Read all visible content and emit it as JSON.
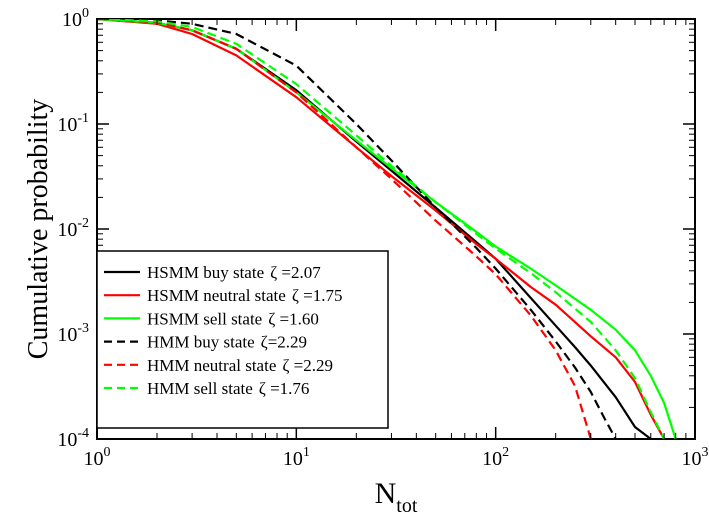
{
  "chart_data": {
    "type": "line",
    "xlabel": "N",
    "xlabel_sub": "tot",
    "ylabel": "Cumulative probability",
    "xscale": "log",
    "yscale": "log",
    "xlim": [
      1,
      1000
    ],
    "ylim": [
      0.0001,
      1
    ],
    "grid": false,
    "legend_position": "bottom-left",
    "x_ticks": [
      {
        "base": "10",
        "exp": "0",
        "value": 1
      },
      {
        "base": "10",
        "exp": "1",
        "value": 10
      },
      {
        "base": "10",
        "exp": "2",
        "value": 100
      },
      {
        "base": "10",
        "exp": "3",
        "value": 1000
      }
    ],
    "y_ticks": [
      {
        "base": "10",
        "exp": "-4",
        "value": 0.0001
      },
      {
        "base": "10",
        "exp": "-3",
        "value": 0.001
      },
      {
        "base": "10",
        "exp": "-2",
        "value": 0.01
      },
      {
        "base": "10",
        "exp": "-1",
        "value": 0.1
      },
      {
        "base": "10",
        "exp": "0",
        "value": 1
      }
    ],
    "series": [
      {
        "name": "HSMM buy state",
        "zeta": "ζ =2.07",
        "color": "#000000",
        "dash": "solid",
        "x": [
          1,
          2,
          3,
          5,
          10,
          20,
          30,
          50,
          80,
          100,
          150,
          200,
          250,
          300,
          400,
          500,
          600
        ],
        "y": [
          1,
          0.92,
          0.78,
          0.52,
          0.21,
          0.068,
          0.036,
          0.016,
          0.0075,
          0.0052,
          0.0022,
          0.0012,
          0.00075,
          0.0005,
          0.00025,
          0.00013,
          0.0001
        ]
      },
      {
        "name": "HSMM neutral state",
        "zeta": "ζ =1.75",
        "color": "#ff0000",
        "dash": "solid",
        "x": [
          1,
          2,
          3,
          5,
          10,
          20,
          30,
          50,
          80,
          100,
          150,
          200,
          300,
          400,
          500,
          600,
          700
        ],
        "y": [
          1,
          0.9,
          0.72,
          0.45,
          0.18,
          0.06,
          0.032,
          0.015,
          0.0072,
          0.0052,
          0.0028,
          0.0019,
          0.00095,
          0.0006,
          0.00035,
          0.00017,
          0.0001
        ]
      },
      {
        "name": "HSMM sell state",
        "zeta": "ζ =1.60",
        "color": "#00ff00",
        "dash": "solid",
        "x": [
          1,
          2,
          3,
          5,
          10,
          20,
          30,
          50,
          80,
          100,
          150,
          200,
          300,
          400,
          500,
          600,
          700,
          800
        ],
        "y": [
          1,
          0.92,
          0.78,
          0.52,
          0.2,
          0.07,
          0.038,
          0.018,
          0.0094,
          0.0068,
          0.0042,
          0.0029,
          0.0017,
          0.0011,
          0.0007,
          0.0004,
          0.00022,
          0.0001
        ]
      },
      {
        "name": "HMM buy state",
        "zeta": "ζ=2.29",
        "color": "#000000",
        "dash": "dashed",
        "x": [
          1,
          2,
          3,
          5,
          10,
          20,
          30,
          50,
          80,
          100,
          150,
          200,
          250,
          300,
          350,
          400
        ],
        "y": [
          1,
          0.97,
          0.9,
          0.72,
          0.36,
          0.1,
          0.045,
          0.016,
          0.0066,
          0.0042,
          0.0017,
          0.00085,
          0.00048,
          0.00028,
          0.00016,
          0.0001
        ]
      },
      {
        "name": "HMM neutral state",
        "zeta": "ζ =2.29",
        "color": "#ff0000",
        "dash": "dashed",
        "x": [
          1,
          2,
          3,
          5,
          10,
          20,
          30,
          50,
          80,
          100,
          150,
          200,
          250,
          300
        ],
        "y": [
          1,
          0.93,
          0.78,
          0.52,
          0.2,
          0.06,
          0.03,
          0.012,
          0.0055,
          0.0037,
          0.0015,
          0.0007,
          0.00032,
          0.0001
        ]
      },
      {
        "name": "HMM sell state",
        "zeta": "ζ =1.76",
        "color": "#00ff00",
        "dash": "dashed",
        "x": [
          1,
          2,
          3,
          5,
          10,
          20,
          30,
          50,
          80,
          100,
          150,
          200,
          300,
          400,
          500,
          600,
          700
        ],
        "y": [
          1,
          0.95,
          0.84,
          0.58,
          0.24,
          0.078,
          0.04,
          0.018,
          0.009,
          0.0065,
          0.0038,
          0.0025,
          0.0013,
          0.0007,
          0.00038,
          0.00018,
          0.0001
        ]
      }
    ]
  }
}
